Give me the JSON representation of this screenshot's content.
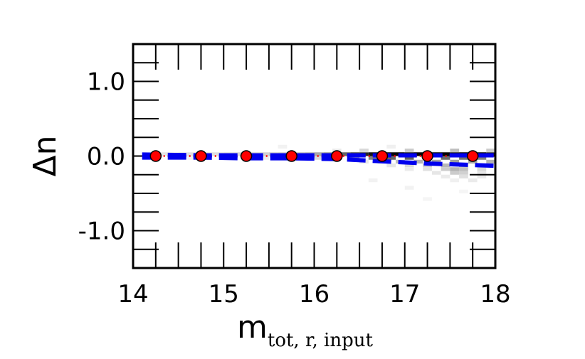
{
  "chart_data": {
    "type": "scatter",
    "title": "",
    "xlabel": {
      "main": "m",
      "subscript": "tot, r, input"
    },
    "ylabel": "Δn",
    "xlim": [
      14,
      18
    ],
    "ylim": [
      -1.5,
      1.5
    ],
    "xticks": [
      14,
      15,
      16,
      17,
      18
    ],
    "xtick_labels": [
      "14",
      "15",
      "16",
      "17",
      "18"
    ],
    "yticks": [
      1.0,
      0.0,
      -1.0
    ],
    "ytick_labels": [
      "1.0",
      "0.0",
      "-1.0"
    ],
    "grid": false,
    "legend": "none",
    "series": [
      {
        "kind": "median-markers",
        "color": "#ff0000",
        "x": [
          14.25,
          14.75,
          15.25,
          15.75,
          16.25,
          16.75,
          17.25,
          17.75
        ],
        "y": [
          0.0,
          0.0,
          0.0,
          0.0,
          0.0,
          0.0,
          0.0,
          0.0
        ]
      },
      {
        "kind": "dash-dot-line",
        "color": "#ff0000",
        "x": [
          14.1,
          18.0
        ],
        "y": [
          0.0,
          0.0
        ]
      },
      {
        "kind": "dashed-lower-band",
        "color": "#0000ee",
        "x": [
          14.1,
          14.75,
          15.25,
          15.75,
          16.25,
          16.75,
          17.25,
          17.75,
          18.0
        ],
        "y": [
          -0.02,
          -0.02,
          -0.03,
          -0.03,
          -0.04,
          -0.07,
          -0.1,
          -0.12,
          -0.13
        ]
      },
      {
        "kind": "dashed-upper-band",
        "color": "#0000ee",
        "x": [
          14.1,
          14.75,
          15.25,
          15.75,
          16.25,
          16.75,
          17.25,
          17.75,
          18.0
        ],
        "y": [
          0.02,
          0.01,
          0.01,
          0.01,
          0.01,
          0.01,
          0.01,
          0.01,
          0.01
        ]
      }
    ],
    "density": {
      "colormap": "gray_r",
      "x_bin": 0.1,
      "y_bin": 0.05,
      "cells": [
        [
          14.1,
          0.0,
          0.08
        ],
        [
          14.2,
          0.0,
          0.1
        ],
        [
          14.3,
          0.0,
          0.1
        ],
        [
          14.4,
          0.0,
          0.08
        ],
        [
          14.5,
          0.0,
          0.1
        ],
        [
          14.6,
          0.0,
          0.12
        ],
        [
          14.7,
          0.0,
          0.12
        ],
        [
          14.8,
          0.0,
          0.12
        ],
        [
          14.9,
          0.0,
          0.12
        ],
        [
          15.0,
          0.0,
          0.14
        ],
        [
          15.1,
          0.0,
          0.15
        ],
        [
          15.2,
          0.0,
          0.16
        ],
        [
          15.3,
          0.0,
          0.18
        ],
        [
          15.4,
          0.0,
          0.18
        ],
        [
          15.5,
          0.0,
          0.2
        ],
        [
          15.6,
          0.0,
          0.22
        ],
        [
          15.7,
          0.0,
          0.24
        ],
        [
          15.8,
          0.0,
          0.26
        ],
        [
          15.9,
          0.0,
          0.3
        ],
        [
          16.0,
          0.0,
          0.34
        ],
        [
          16.1,
          0.0,
          0.4
        ],
        [
          16.2,
          0.0,
          0.48
        ],
        [
          16.3,
          0.0,
          0.6
        ],
        [
          16.4,
          0.0,
          0.72
        ],
        [
          16.5,
          0.0,
          0.85
        ],
        [
          16.6,
          0.0,
          0.92
        ],
        [
          16.7,
          0.0,
          0.95
        ],
        [
          16.8,
          0.0,
          0.97
        ],
        [
          16.9,
          0.0,
          0.98
        ],
        [
          17.0,
          0.0,
          0.98
        ],
        [
          17.1,
          0.0,
          0.98
        ],
        [
          17.2,
          0.0,
          0.98
        ],
        [
          17.3,
          0.0,
          0.98
        ],
        [
          17.4,
          0.0,
          0.98
        ],
        [
          17.5,
          0.0,
          0.98
        ],
        [
          17.6,
          0.0,
          0.98
        ],
        [
          17.7,
          0.0,
          0.98
        ],
        [
          17.8,
          0.0,
          0.98
        ],
        [
          17.9,
          0.0,
          0.9
        ],
        [
          14.6,
          -0.05,
          0.05
        ],
        [
          15.0,
          -0.05,
          0.06
        ],
        [
          15.4,
          -0.05,
          0.08
        ],
        [
          15.8,
          -0.05,
          0.1
        ],
        [
          16.0,
          -0.05,
          0.15
        ],
        [
          16.2,
          -0.05,
          0.2
        ],
        [
          16.4,
          -0.05,
          0.35
        ],
        [
          16.6,
          -0.05,
          0.5
        ],
        [
          16.8,
          -0.05,
          0.6
        ],
        [
          17.0,
          -0.05,
          0.62
        ],
        [
          17.2,
          -0.05,
          0.6
        ],
        [
          17.4,
          -0.05,
          0.58
        ],
        [
          17.6,
          -0.05,
          0.55
        ],
        [
          17.8,
          -0.05,
          0.5
        ],
        [
          16.5,
          -0.1,
          0.1
        ],
        [
          16.7,
          -0.1,
          0.18
        ],
        [
          16.9,
          -0.1,
          0.25
        ],
        [
          17.1,
          -0.1,
          0.3
        ],
        [
          17.3,
          -0.1,
          0.35
        ],
        [
          17.5,
          -0.1,
          0.38
        ],
        [
          17.7,
          -0.1,
          0.35
        ],
        [
          17.9,
          -0.1,
          0.3
        ],
        [
          16.8,
          -0.15,
          0.1
        ],
        [
          17.0,
          -0.15,
          0.15
        ],
        [
          17.2,
          -0.15,
          0.2
        ],
        [
          17.4,
          -0.15,
          0.28
        ],
        [
          17.6,
          -0.15,
          0.3
        ],
        [
          17.8,
          -0.15,
          0.22
        ],
        [
          17.0,
          -0.2,
          0.08
        ],
        [
          17.2,
          -0.2,
          0.12
        ],
        [
          17.4,
          -0.2,
          0.2
        ],
        [
          17.5,
          -0.2,
          0.3
        ],
        [
          17.6,
          -0.2,
          0.25
        ],
        [
          17.8,
          -0.2,
          0.15
        ],
        [
          17.3,
          -0.25,
          0.1
        ],
        [
          17.5,
          -0.25,
          0.2
        ],
        [
          17.6,
          -0.25,
          0.18
        ],
        [
          17.8,
          -0.25,
          0.1
        ],
        [
          17.4,
          -0.3,
          0.08
        ],
        [
          17.6,
          -0.3,
          0.12
        ],
        [
          17.8,
          -0.3,
          0.08
        ],
        [
          17.5,
          -0.35,
          0.06
        ],
        [
          17.7,
          -0.35,
          0.08
        ],
        [
          16.6,
          -0.35,
          0.05
        ],
        [
          17.0,
          -0.45,
          0.05
        ],
        [
          17.6,
          -0.5,
          0.04
        ],
        [
          17.2,
          -0.6,
          0.04
        ],
        [
          15.6,
          0.1,
          0.05
        ],
        [
          16.2,
          0.05,
          0.08
        ],
        [
          16.5,
          0.05,
          0.15
        ],
        [
          17.0,
          0.05,
          0.2
        ],
        [
          17.5,
          0.05,
          0.25
        ],
        [
          17.9,
          0.05,
          0.2
        ],
        [
          16.8,
          0.1,
          0.06
        ]
      ]
    }
  }
}
